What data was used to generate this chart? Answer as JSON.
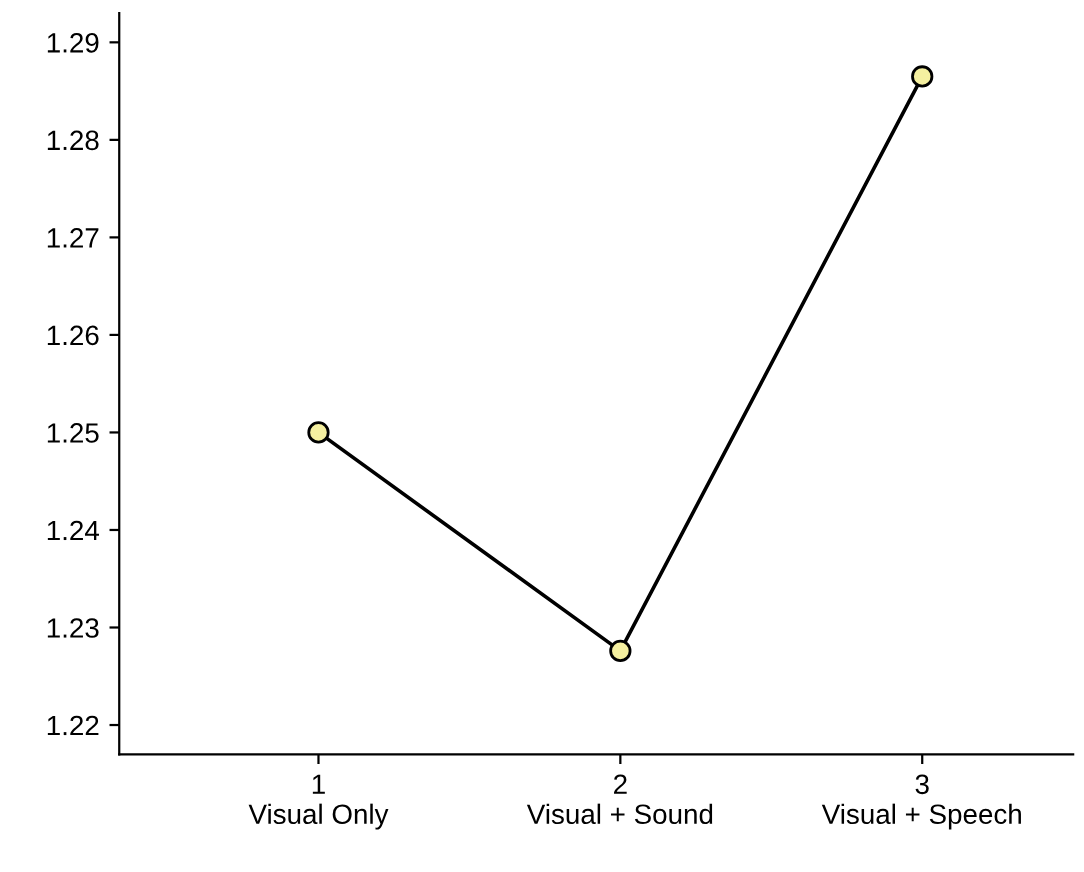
{
  "chart_data": {
    "type": "line",
    "categories": [
      "1\nVisual Only",
      "2\nVisual + Sound",
      "3\nVisual + Speech"
    ],
    "series": [
      {
        "color": "#000000",
        "values": [
          1.25,
          1.2276,
          1.2865
        ]
      }
    ],
    "marker": "circle",
    "line_style": "solid",
    "ylim": [
      1.217,
      1.293
    ],
    "yticks": [
      1.22,
      1.23,
      1.24,
      1.25,
      1.26,
      1.27,
      1.28,
      1.29
    ],
    "grid": false,
    "legend": false
  }
}
